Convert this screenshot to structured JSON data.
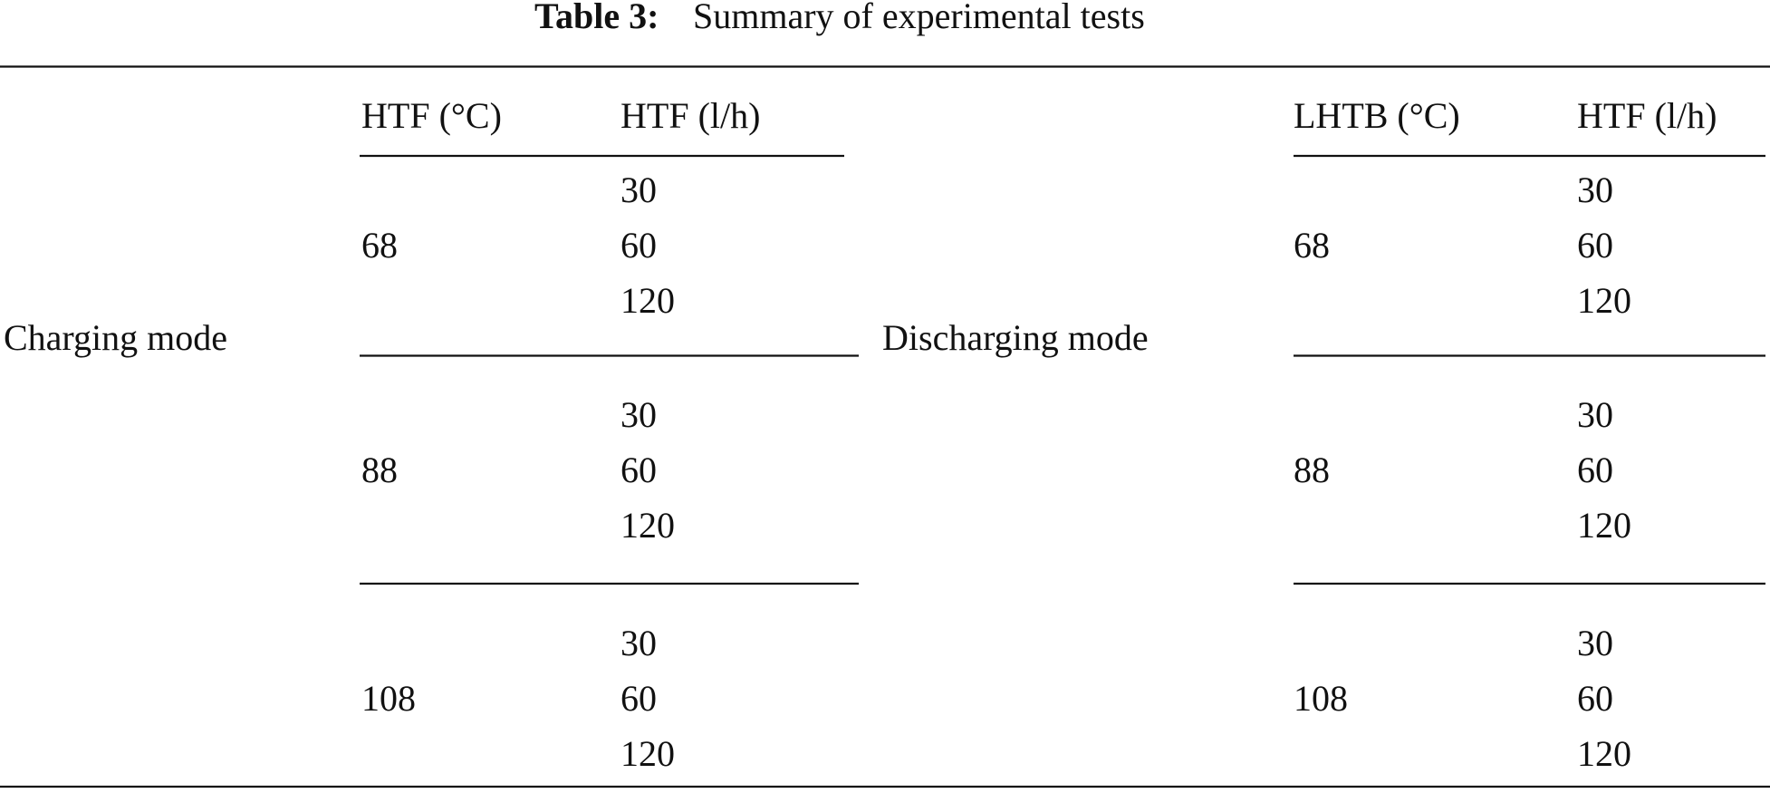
{
  "table": {
    "caption_label": "Table 3:",
    "caption_text": "Summary of experimental tests",
    "sections": [
      {
        "mode": "Charging mode",
        "headers": [
          "HTF (°C)",
          "HTF (l/h)"
        ],
        "groups": [
          {
            "temperature": 68,
            "flows": [
              30,
              60,
              120
            ]
          },
          {
            "temperature": 88,
            "flows": [
              30,
              60,
              120
            ]
          },
          {
            "temperature": 108,
            "flows": [
              30,
              60,
              120
            ]
          }
        ]
      },
      {
        "mode": "Discharging mode",
        "headers": [
          "LHTB (°C)",
          "HTF (l/h)"
        ],
        "groups": [
          {
            "temperature": 68,
            "flows": [
              30,
              60,
              120
            ]
          },
          {
            "temperature": 88,
            "flows": [
              30,
              60,
              120
            ]
          },
          {
            "temperature": 108,
            "flows": [
              30,
              60,
              120
            ]
          }
        ]
      }
    ]
  }
}
